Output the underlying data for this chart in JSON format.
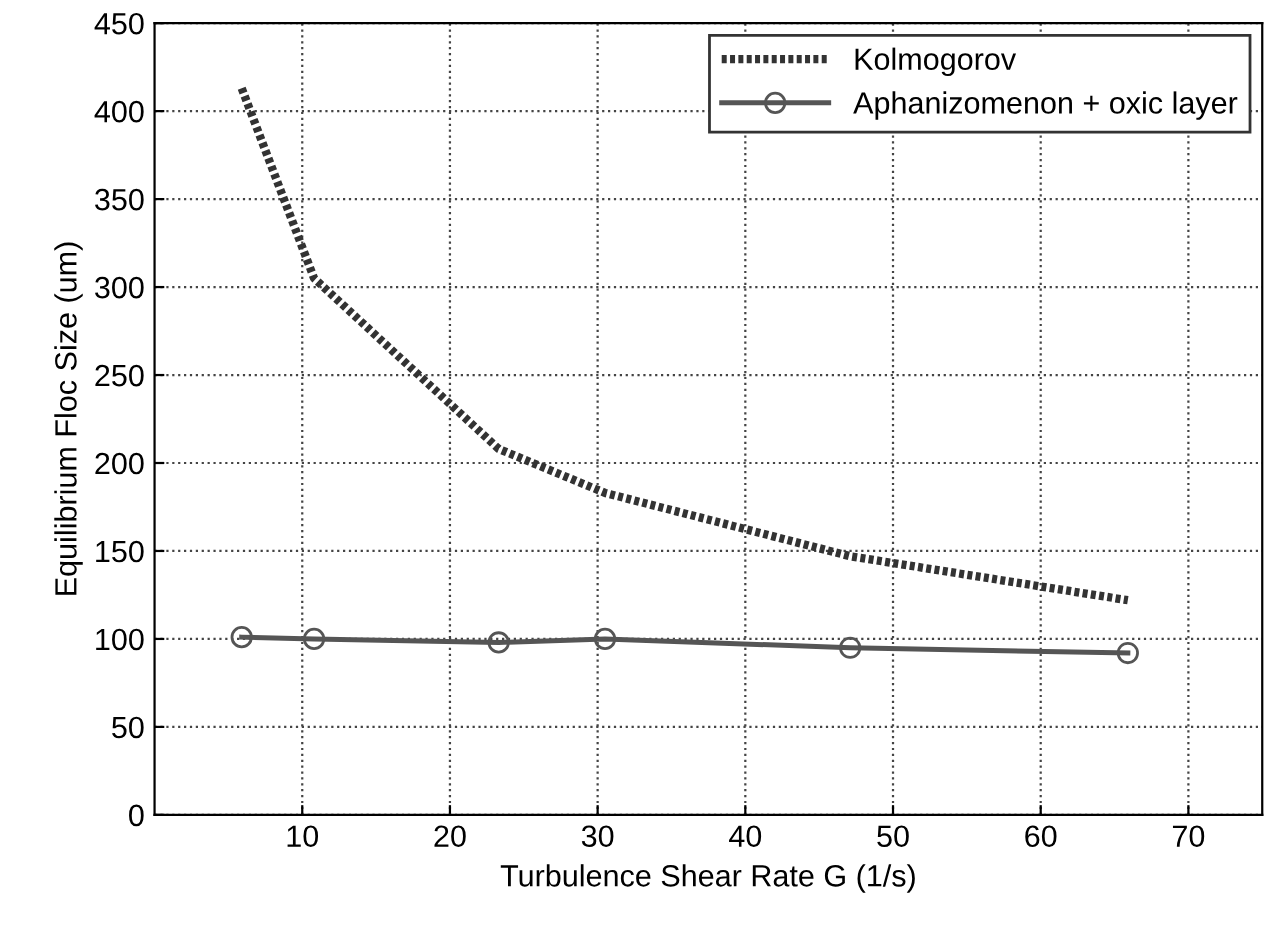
{
  "chart_data": {
    "type": "line",
    "xlabel": "Turbulence Shear Rate G (1/s)",
    "ylabel": "Equilibrium Floc Size (um)",
    "xlim": [
      0,
      75
    ],
    "xticks": [
      10,
      20,
      30,
      40,
      50,
      60,
      70
    ],
    "ylim": [
      0,
      450
    ],
    "yticks": [
      0,
      50,
      100,
      150,
      200,
      250,
      300,
      350,
      400,
      450
    ],
    "grid": true,
    "legend": "top right",
    "series": [
      {
        "name": "Kolmogorov",
        "color": "#333333",
        "line_style": "dotted",
        "marker": "none",
        "x": [
          5.9,
          10.8,
          23.3,
          30.5,
          47.1,
          65.9
        ],
        "values": [
          413,
          305,
          208,
          183,
          147,
          122
        ]
      },
      {
        "name": "Aphanizomenon + oxic layer",
        "color": "#555555",
        "line_style": "solid",
        "marker": "circle",
        "x": [
          5.9,
          10.8,
          23.3,
          30.5,
          47.1,
          65.9
        ],
        "values": [
          101,
          100,
          98,
          100,
          95,
          92
        ]
      }
    ]
  }
}
